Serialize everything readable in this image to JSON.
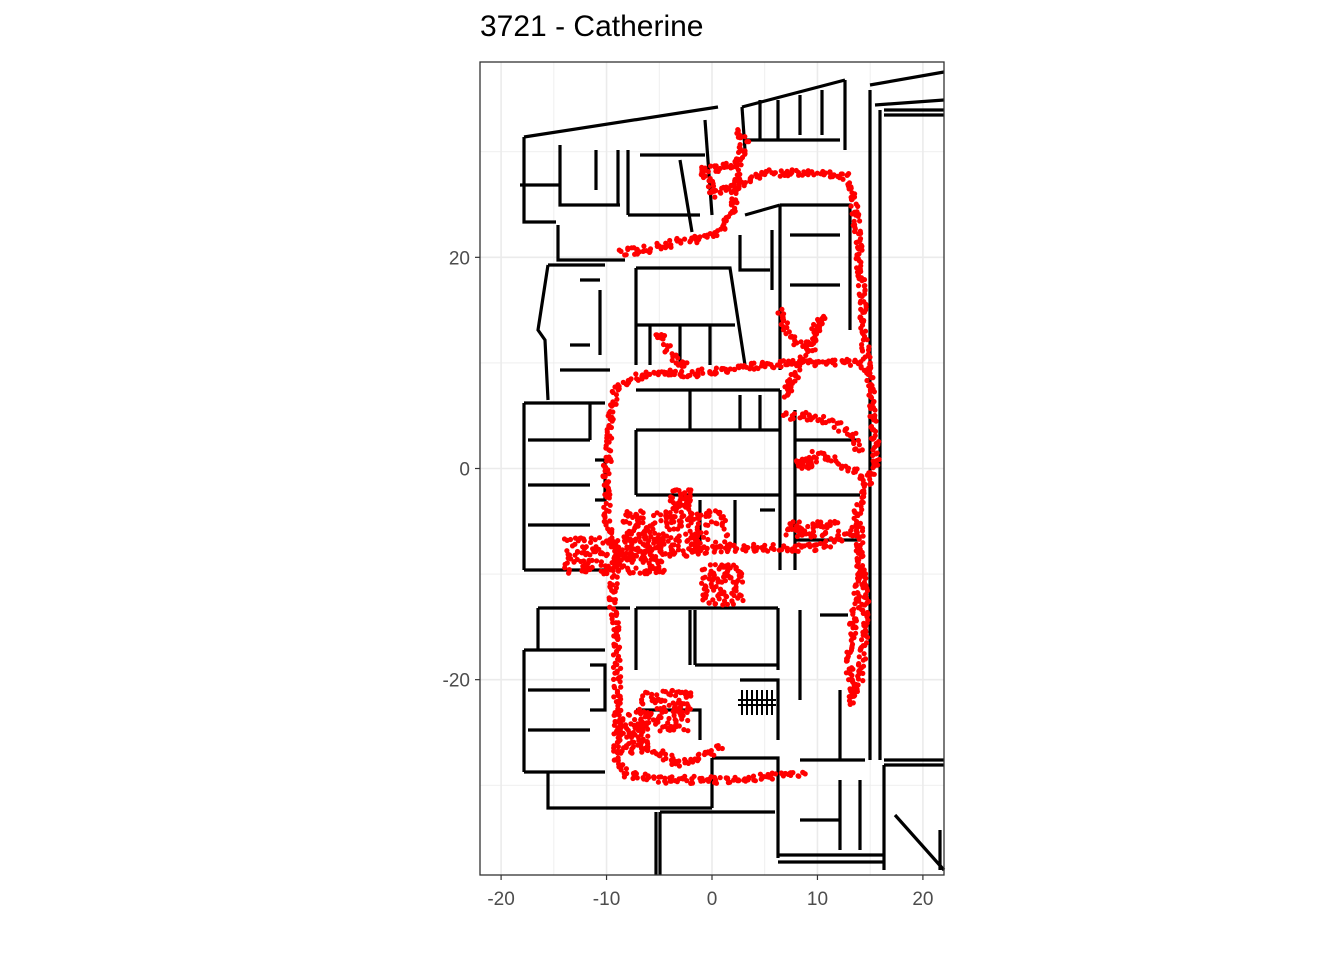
{
  "chart_data": {
    "type": "scatter",
    "title": "3721 - Catherine",
    "xlabel": "",
    "ylabel": "",
    "xlim": [
      -22,
      22
    ],
    "ylim": [
      -38.5,
      38.5
    ],
    "x_ticks": [
      -20,
      -10,
      0,
      10,
      20
    ],
    "y_ticks": [
      -20,
      0,
      20
    ],
    "grid": true,
    "theme": "bw",
    "point_color": "#ff0000",
    "wall_color": "#000000",
    "background_layer": "building floor plan walls",
    "series": [
      {
        "trajectory_paths": [
          [
            [
              -8.5,
              20.5
            ],
            [
              -6,
              20.8
            ],
            [
              -3,
              21.5
            ],
            [
              -1,
              21.8
            ],
            [
              1,
              22.5
            ],
            [
              2,
              25
            ],
            [
              2.5,
              29
            ],
            [
              1,
              28.5
            ],
            [
              -1,
              28.2
            ],
            [
              0,
              27
            ],
            [
              0,
              26
            ],
            [
              3,
              27
            ],
            [
              5,
              28
            ],
            [
              8,
              28
            ],
            [
              11,
              28
            ],
            [
              13,
              27.5
            ],
            [
              13.5,
              25
            ],
            [
              14,
              20
            ],
            [
              14.3,
              15
            ],
            [
              14.5,
              12
            ],
            [
              15,
              8
            ],
            [
              15.5,
              2
            ],
            [
              15.5,
              0
            ],
            [
              14,
              -3
            ],
            [
              13.5,
              -6
            ],
            [
              10,
              -7.5
            ],
            [
              6,
              -7.5
            ],
            [
              2,
              -7.5
            ],
            [
              -3,
              -8
            ],
            [
              -7,
              -8
            ],
            [
              -9,
              -8.5
            ]
          ],
          [
            [
              -9,
              -8
            ],
            [
              -10,
              -5
            ],
            [
              -10,
              0
            ],
            [
              -9.5,
              5
            ],
            [
              -9,
              8
            ],
            [
              -6,
              9
            ],
            [
              -2,
              9
            ],
            [
              2,
              9.5
            ],
            [
              5,
              9.8
            ],
            [
              8,
              10
            ],
            [
              10,
              10
            ],
            [
              12,
              10
            ],
            [
              14,
              10
            ],
            [
              15,
              9
            ]
          ],
          [
            [
              -9,
              -8
            ],
            [
              -9.5,
              -12
            ],
            [
              -9,
              -16
            ],
            [
              -9,
              -20
            ],
            [
              -9,
              -24
            ],
            [
              -9,
              -28
            ],
            [
              -8,
              -29
            ],
            [
              -5,
              -29.5
            ],
            [
              0,
              -29.5
            ],
            [
              4,
              -29.3
            ],
            [
              7,
              -29
            ],
            [
              9,
              -29
            ]
          ],
          [
            [
              2,
              28.5
            ],
            [
              3,
              30
            ],
            [
              2.5,
              32
            ],
            [
              3.5,
              31
            ]
          ],
          [
            [
              7,
              5
            ],
            [
              9,
              5
            ],
            [
              11,
              4.5
            ],
            [
              12,
              4
            ],
            [
              13.5,
              3
            ],
            [
              14,
              1.5
            ]
          ],
          [
            [
              9,
              1
            ],
            [
              10,
              1.5
            ],
            [
              11,
              1
            ],
            [
              12,
              0.5
            ],
            [
              13,
              0
            ],
            [
              14,
              -0.5
            ],
            [
              14.5,
              -1.5
            ]
          ],
          [
            [
              6.5,
              15
            ],
            [
              7,
              13
            ],
            [
              8,
              12
            ],
            [
              9.5,
              11.5
            ],
            [
              10.5,
              14.5
            ],
            [
              7,
              7
            ],
            [
              7.5,
              9
            ]
          ],
          [
            [
              14,
              -8
            ],
            [
              14.5,
              -12
            ],
            [
              14.5,
              -16
            ],
            [
              14,
              -20
            ],
            [
              13.2,
              -22
            ],
            [
              13,
              -18
            ],
            [
              13.5,
              -14
            ],
            [
              14,
              -10
            ],
            [
              14,
              -5
            ]
          ],
          [
            [
              -5,
              13
            ],
            [
              -4,
              11
            ],
            [
              -3,
              10
            ],
            [
              -2,
              9.5
            ]
          ],
          [
            [
              -7,
              -26
            ],
            [
              -5,
              -27
            ],
            [
              -3,
              -28
            ],
            [
              0,
              -27
            ],
            [
              1,
              -26
            ]
          ]
        ],
        "clusters": [
          [
            [
              -14,
              -10
            ],
            [
              -4.5,
              -6.5
            ]
          ],
          [
            [
              -8.5,
              -7.5
            ],
            [
              1.5,
              -4
            ]
          ],
          [
            [
              -1,
              -9
            ],
            [
              3,
              -13
            ]
          ],
          [
            [
              -7,
              -21
            ],
            [
              -2,
              -25
            ]
          ],
          [
            [
              -9,
              -23
            ],
            [
              -6,
              -27
            ]
          ],
          [
            [
              8,
              1
            ],
            [
              10,
              0
            ]
          ],
          [
            [
              7,
              -5
            ],
            [
              12,
              -6.5
            ]
          ],
          [
            [
              -4,
              -2
            ],
            [
              -2,
              -4
            ]
          ]
        ]
      }
    ]
  }
}
